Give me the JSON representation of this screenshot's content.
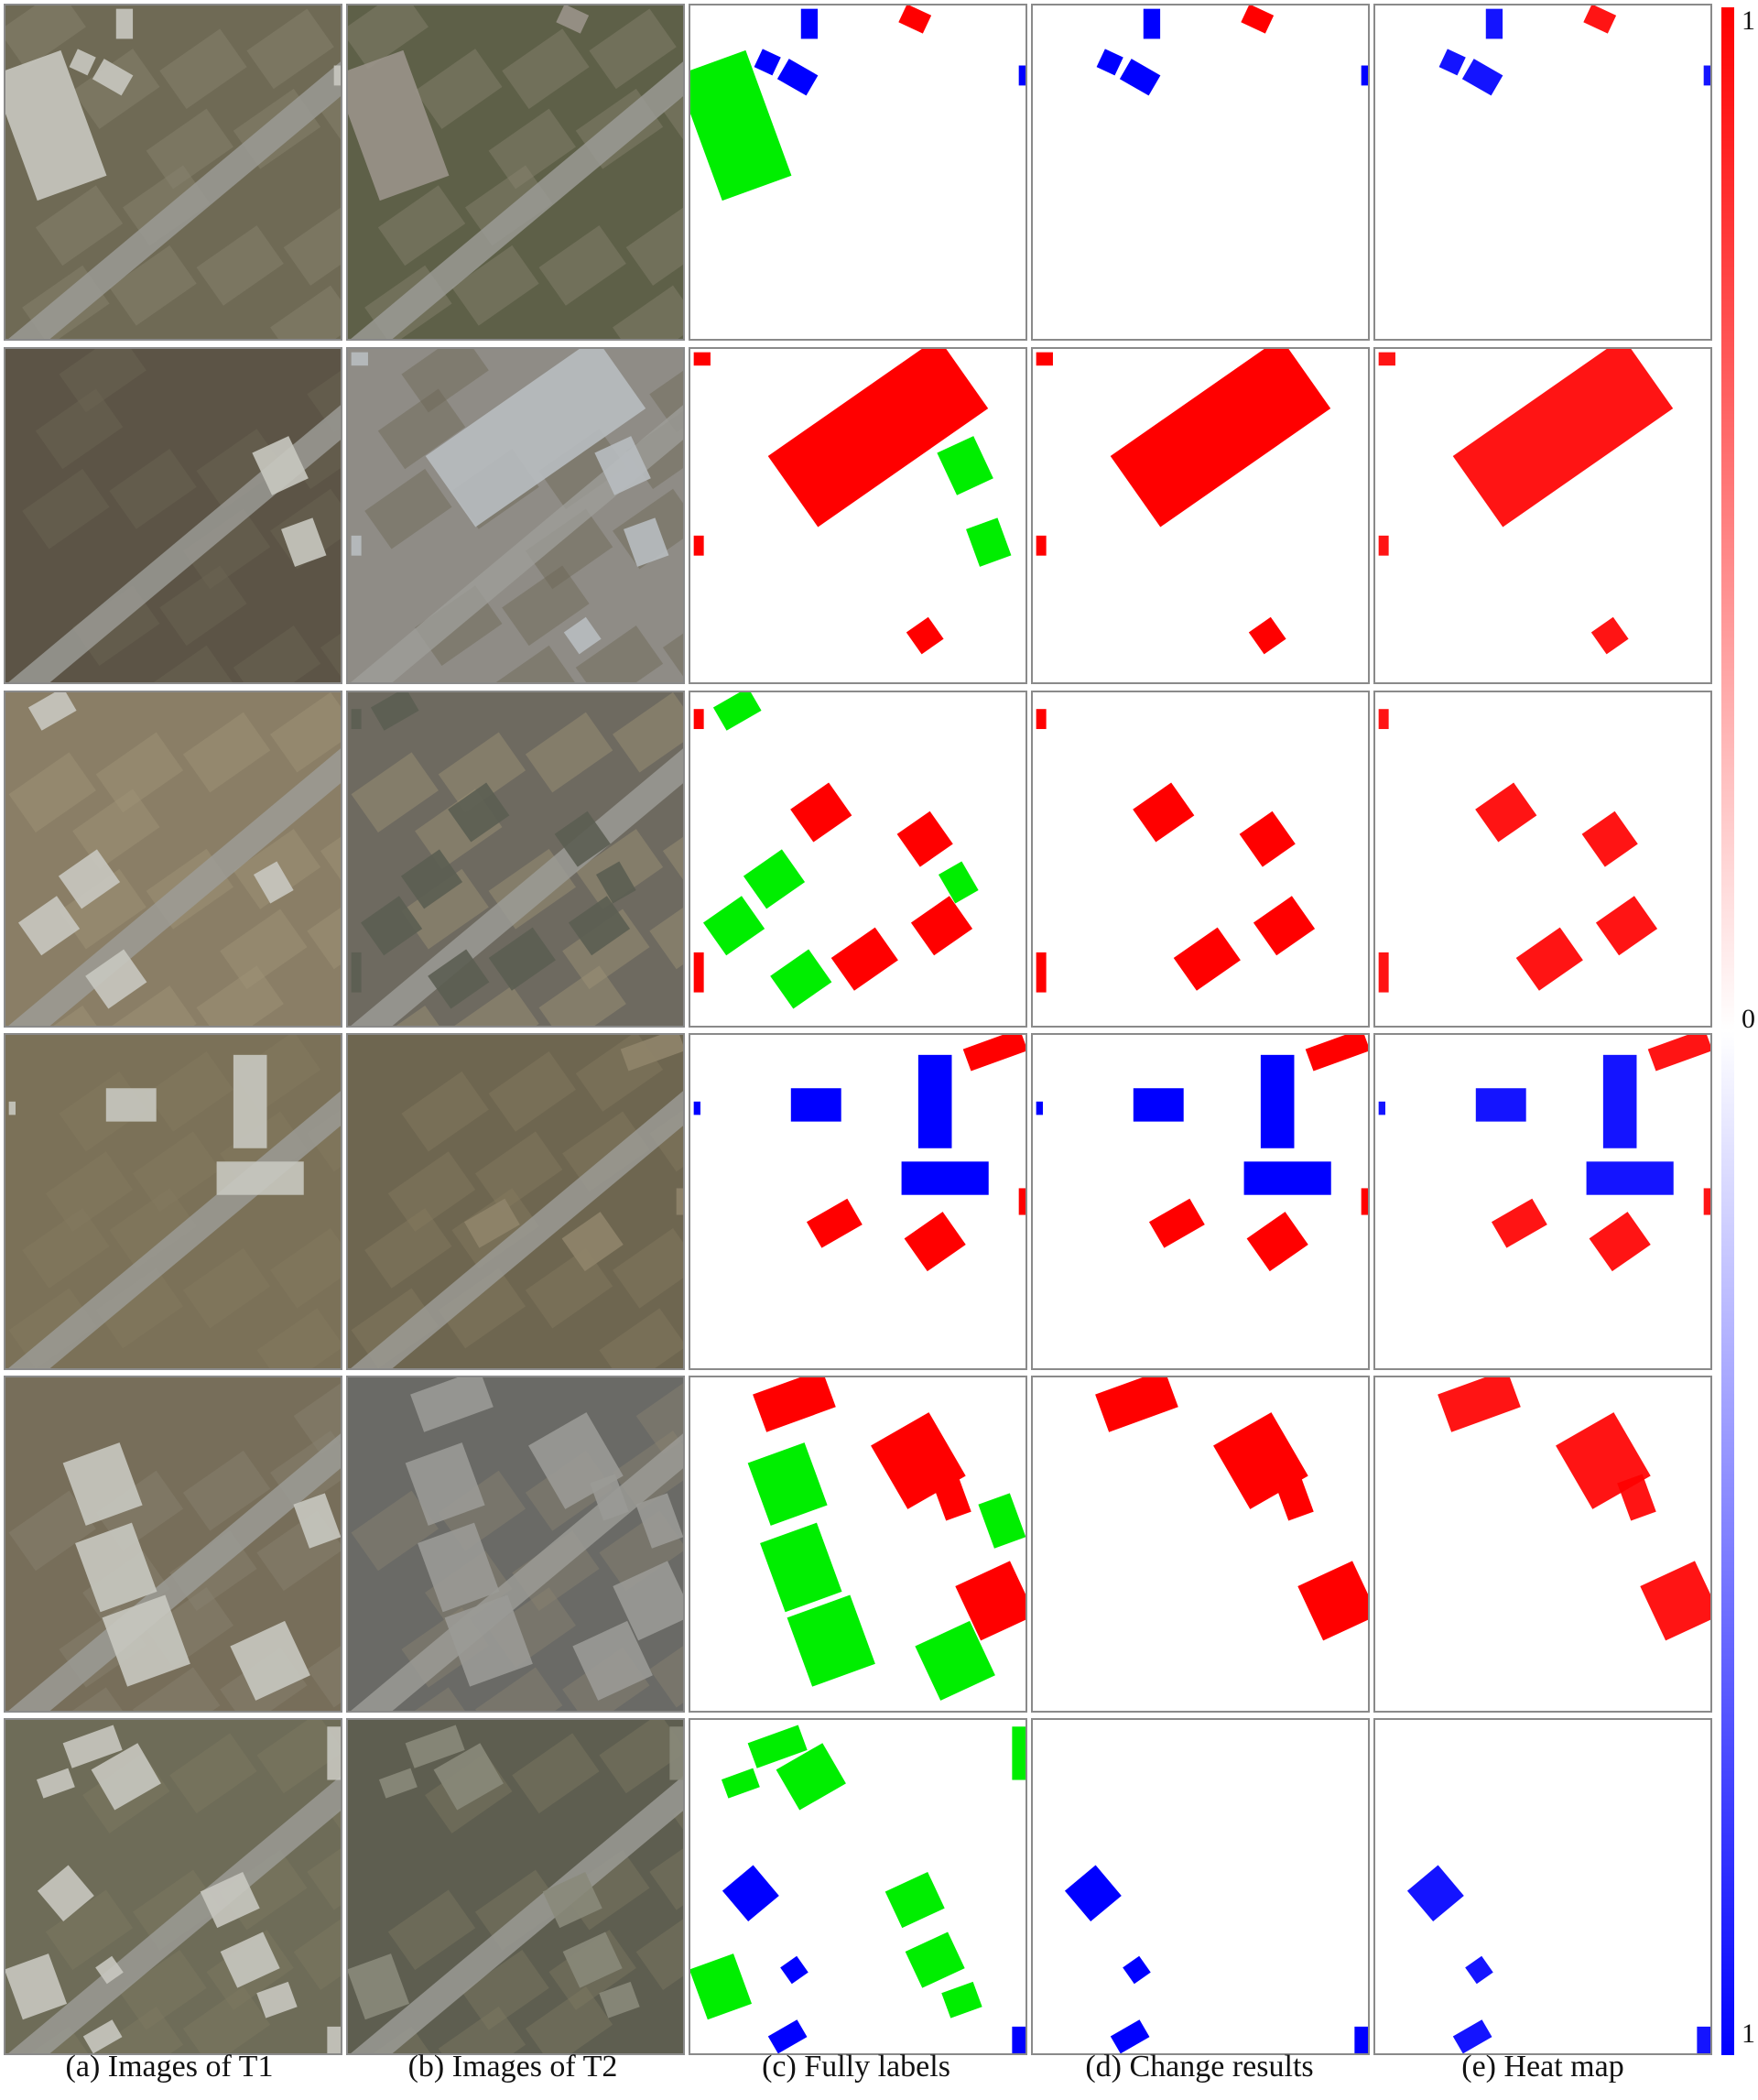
{
  "columns": [
    {
      "caption": "(a) Images of T1",
      "kind": "aerial-t1"
    },
    {
      "caption": "(b) Images of T2",
      "kind": "aerial-t2"
    },
    {
      "caption": "(c) Fully labels",
      "kind": "label"
    },
    {
      "caption": "(d) Change results",
      "kind": "result"
    },
    {
      "caption": "(e) Heat map",
      "kind": "heat"
    }
  ],
  "colors": {
    "added": "#ff0000",
    "removed": "#0000ff",
    "unchanged": "#00ee00",
    "background": "#ffffff",
    "frame": "#8a8a8a"
  },
  "colorbar": {
    "top_label": "1",
    "middle_label": "0",
    "bottom_label": "1"
  }
}
